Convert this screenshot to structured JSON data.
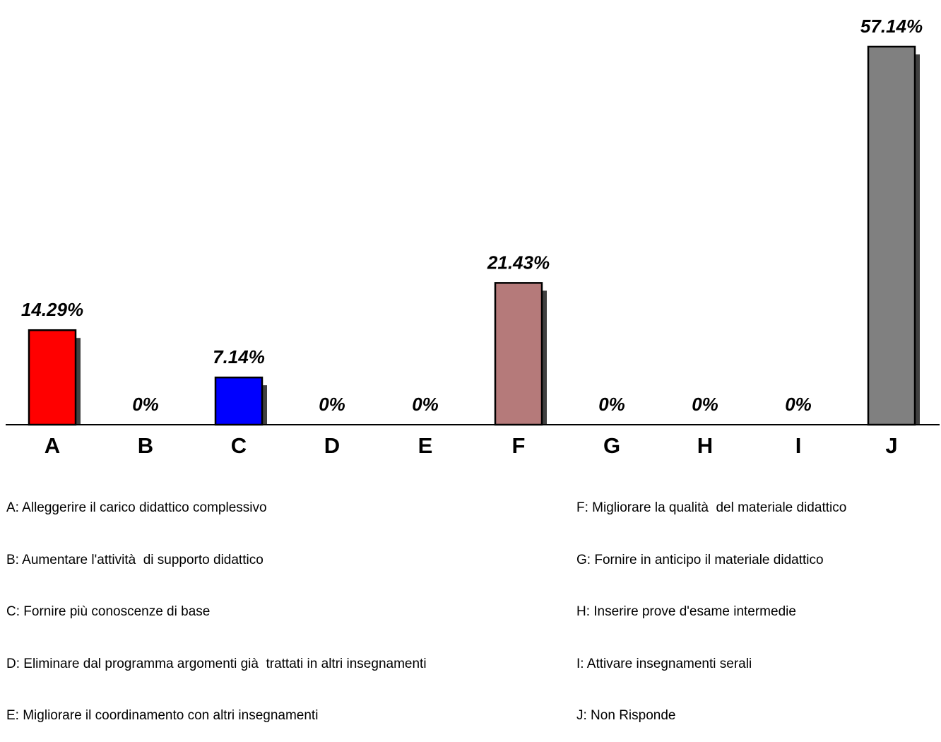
{
  "chart_data": {
    "type": "bar",
    "categories": [
      "A",
      "B",
      "C",
      "D",
      "E",
      "F",
      "G",
      "H",
      "I",
      "J"
    ],
    "values": [
      14.29,
      0,
      7.14,
      0,
      0,
      21.43,
      0,
      0,
      0,
      57.14
    ],
    "data_labels": [
      "14.29%",
      "0%",
      "7.14%",
      "0%",
      "0%",
      "21.43%",
      "0%",
      "0%",
      "0%",
      "57.14%"
    ],
    "colors": [
      "#ff0000",
      "#ffffff",
      "#0000ff",
      "#ffffff",
      "#ffffff",
      "#b57a7a",
      "#ffffff",
      "#ffffff",
      "#ffffff",
      "#808080"
    ],
    "shadow_color": "#404040",
    "ylim": [
      0,
      57.14
    ],
    "grid": false,
    "legend": {
      "left": [
        "A: Alleggerire il carico didattico complessivo",
        "B: Aumentare l'attività  di supporto didattico",
        "C: Fornire più conoscenze di base",
        "D: Eliminare dal programma argomenti già  trattati in altri insegnamenti",
        "E: Migliorare il coordinamento con altri insegnamenti"
      ],
      "right": [
        "F: Migliorare la qualità  del materiale didattico",
        "G: Fornire in anticipo il materiale didattico",
        "H: Inserire prove d'esame intermedie",
        "I: Attivare insegnamenti serali",
        "J: Non Risponde"
      ]
    }
  }
}
